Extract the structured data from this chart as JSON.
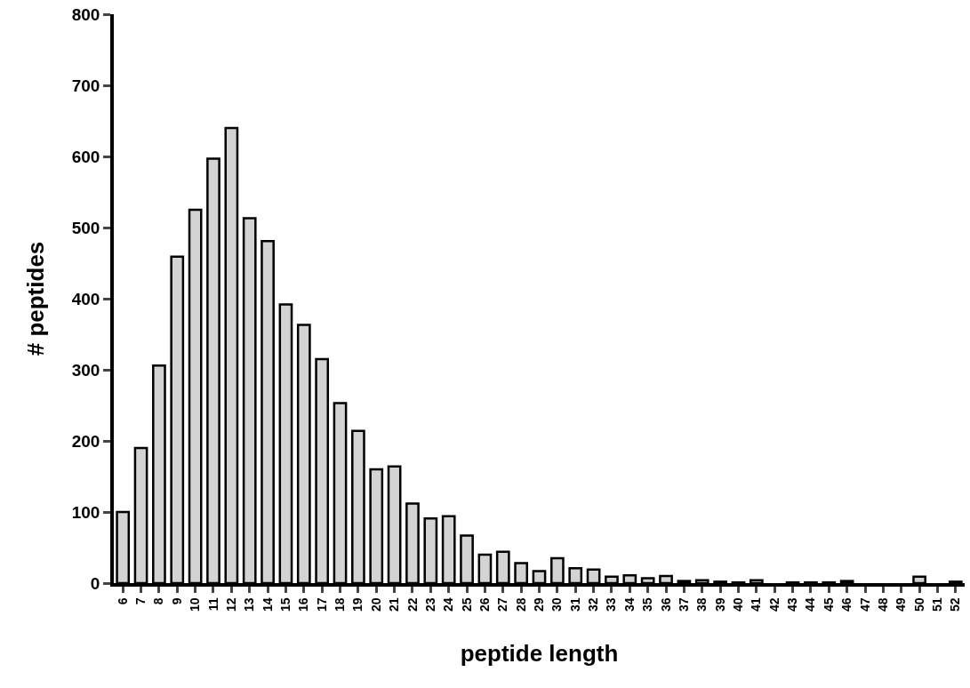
{
  "chart_data": {
    "type": "bar",
    "xlabel": "peptide length",
    "ylabel": "# peptides",
    "categories": [
      "6",
      "7",
      "8",
      "9",
      "10",
      "11",
      "12",
      "13",
      "14",
      "15",
      "16",
      "17",
      "18",
      "19",
      "20",
      "21",
      "22",
      "23",
      "24",
      "25",
      "26",
      "27",
      "28",
      "29",
      "30",
      "31",
      "32",
      "33",
      "34",
      "35",
      "36",
      "37",
      "38",
      "39",
      "40",
      "41",
      "42",
      "43",
      "44",
      "45",
      "46",
      "47",
      "48",
      "49",
      "50",
      "51",
      "52"
    ],
    "values": [
      100,
      190,
      306,
      459,
      525,
      597,
      640,
      513,
      481,
      392,
      363,
      315,
      253,
      214,
      160,
      164,
      112,
      91,
      94,
      67,
      40,
      44,
      28,
      17,
      35,
      21,
      19,
      9,
      11,
      7,
      10,
      3,
      4,
      2,
      1,
      4,
      0,
      1,
      1,
      1,
      3,
      0,
      0,
      0,
      9,
      0,
      2
    ],
    "color": "#d3d3d3",
    "ylim": [
      0,
      800
    ],
    "yticks": [
      0,
      100,
      200,
      300,
      400,
      500,
      600,
      700,
      800
    ],
    "grid": false
  }
}
